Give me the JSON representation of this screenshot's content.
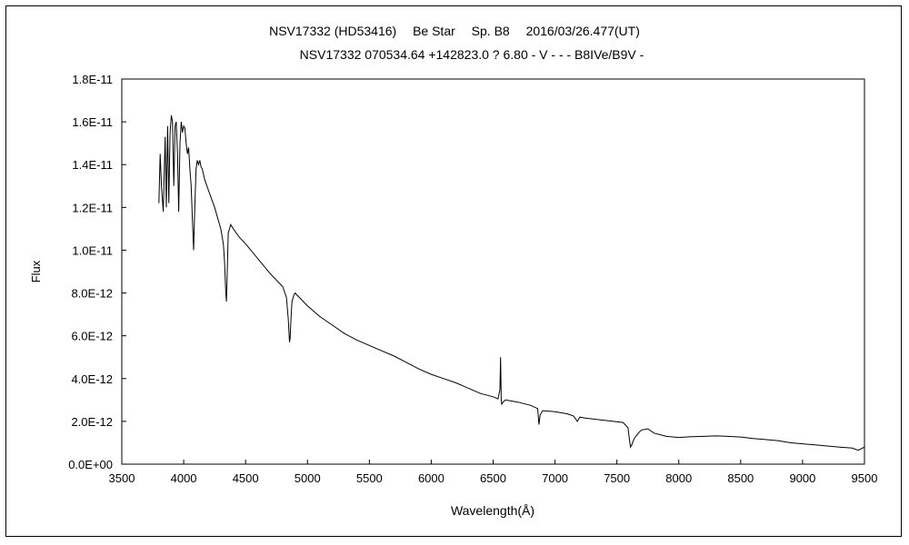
{
  "chart_data": {
    "type": "line",
    "title": "NSV17332 (HD53416)　 Be Star　 Sp. B8　 2016/03/26.477(UT)",
    "subtitle": "NSV17332 070534.64 +142823.0 ? 6.80 - V - - - B8IVe/B9V -",
    "xlabel": "Wavelength(Å)",
    "ylabel": "Flux",
    "xlim": [
      3500,
      9500
    ],
    "ylim": [
      0,
      1.8e-11
    ],
    "x_ticks": [
      "3500",
      "4000",
      "4500",
      "5000",
      "5500",
      "6000",
      "6500",
      "7000",
      "7500",
      "8000",
      "8500",
      "9000",
      "9500"
    ],
    "y_ticks": [
      "0.0E+00",
      "2.0E-12",
      "4.0E-12",
      "6.0E-12",
      "8.0E-12",
      "1.0E-11",
      "1.2E-11",
      "1.4E-11",
      "1.6E-11",
      "1.8E-11"
    ],
    "grid": false,
    "line_color": "#000000",
    "series": [
      {
        "x": [
          3800,
          3810,
          3820,
          3835,
          3850,
          3860,
          3870,
          3880,
          3890,
          3900,
          3910,
          3920,
          3930,
          3940,
          3950,
          3960,
          3970,
          3980,
          3990,
          4000,
          4010,
          4020,
          4030,
          4040,
          4050,
          4060,
          4070,
          4080,
          4090,
          4100,
          4110,
          4120,
          4130,
          4140,
          4150,
          4170,
          4200,
          4250,
          4300,
          4320,
          4330,
          4340,
          4345,
          4350,
          4360,
          4370,
          4380,
          4400,
          4450,
          4500,
          4600,
          4700,
          4800,
          4830,
          4845,
          4855,
          4860,
          4865,
          4875,
          4890,
          4900,
          4950,
          5000,
          5100,
          5200,
          5300,
          5400,
          5500,
          5600,
          5700,
          5800,
          5900,
          6000,
          6100,
          6200,
          6300,
          6400,
          6500,
          6540,
          6555,
          6560,
          6565,
          6570,
          6580,
          6600,
          6700,
          6800,
          6860,
          6870,
          6880,
          6900,
          7000,
          7100,
          7150,
          7180,
          7200,
          7250,
          7400,
          7550,
          7590,
          7600,
          7610,
          7620,
          7640,
          7680,
          7700,
          7750,
          7800,
          7900,
          8000,
          8100,
          8200,
          8300,
          8400,
          8500,
          8600,
          8700,
          8800,
          8900,
          9000,
          9100,
          9200,
          9300,
          9400,
          9450,
          9500
        ],
        "y": [
          1.22e-11,
          1.45e-11,
          1.3e-11,
          1.18e-11,
          1.53e-11,
          1.2e-11,
          1.58e-11,
          1.22e-11,
          1.55e-11,
          1.63e-11,
          1.6e-11,
          1.3e-11,
          1.58e-11,
          1.6e-11,
          1.45e-11,
          1.18e-11,
          1.5e-11,
          1.6e-11,
          1.55e-11,
          1.58e-11,
          1.57e-11,
          1.5e-11,
          1.45e-11,
          1.48e-11,
          1.38e-11,
          1.3e-11,
          1.15e-11,
          1e-11,
          1.2e-11,
          1.38e-11,
          1.42e-11,
          1.4e-11,
          1.42e-11,
          1.39e-11,
          1.38e-11,
          1.33e-11,
          1.28e-11,
          1.2e-11,
          1.1e-11,
          1.03e-11,
          9.5e-12,
          8e-12,
          7.6e-12,
          8.5e-12,
          1.08e-11,
          1.1e-11,
          1.12e-11,
          1.1e-11,
          1.06e-11,
          1.03e-11,
          9.6e-12,
          8.9e-12,
          8.3e-12,
          7.8e-12,
          6.8e-12,
          5.7e-12,
          5.9e-12,
          6.6e-12,
          7.6e-12,
          7.9e-12,
          8e-12,
          7.7e-12,
          7.4e-12,
          6.9e-12,
          6.5e-12,
          6.1e-12,
          5.8e-12,
          5.55e-12,
          5.3e-12,
          5.05e-12,
          4.75e-12,
          4.45e-12,
          4.2e-12,
          4e-12,
          3.8e-12,
          3.55e-12,
          3.3e-12,
          3.15e-12,
          3.05e-12,
          3.5e-12,
          5e-12,
          3e-12,
          2.8e-12,
          2.9e-12,
          3e-12,
          2.9e-12,
          2.75e-12,
          2.6e-12,
          1.85e-12,
          2.3e-12,
          2.5e-12,
          2.45e-12,
          2.35e-12,
          2.25e-12,
          2e-12,
          2.2e-12,
          2.15e-12,
          2.05e-12,
          1.95e-12,
          1.7e-12,
          1.2e-12,
          8e-13,
          9e-13,
          1.2e-12,
          1.5e-12,
          1.6e-12,
          1.65e-12,
          1.45e-12,
          1.3e-12,
          1.25e-12,
          1.28e-12,
          1.3e-12,
          1.32e-12,
          1.3e-12,
          1.27e-12,
          1.2e-12,
          1.15e-12,
          1.1e-12,
          1e-12,
          9.5e-13,
          9e-13,
          8.5e-13,
          8e-13,
          7.5e-13,
          6.5e-13,
          8e-13
        ]
      }
    ]
  }
}
